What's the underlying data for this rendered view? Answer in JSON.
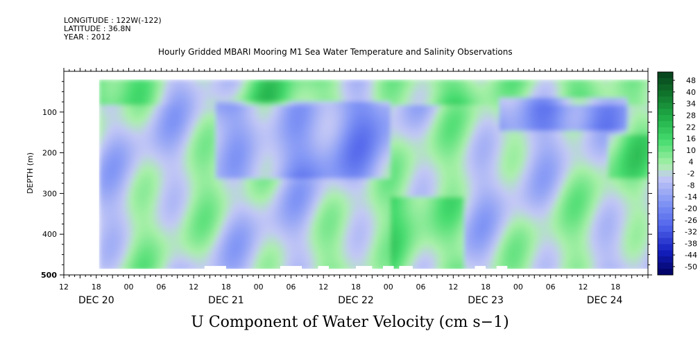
{
  "meta": {
    "longitude": "LONGITUDE : 122W(-122)",
    "latitude": "LATITUDE : 36.8N",
    "year": "YEAR : 2012"
  },
  "chart_data": {
    "type": "heatmap",
    "title": "Hourly Gridded MBARI Mooring M1 Sea Water Temperature and Salinity Observations",
    "xlabel": "",
    "ylabel": "DEPTH (m)",
    "bottom_title": "U Component of Water Velocity (cm s−1)",
    "y_range": [
      0,
      500
    ],
    "y_ticks": [
      100,
      200,
      300,
      400,
      500
    ],
    "x_range_hours": [
      0,
      108
    ],
    "x_hour_labels": [
      "12",
      "18",
      "00",
      "06",
      "12",
      "18",
      "00",
      "06",
      "12",
      "18",
      "00",
      "06",
      "12",
      "18",
      "00",
      "06",
      "12",
      "18"
    ],
    "x_date_labels": [
      {
        "label": "DEC 20",
        "hour": 6
      },
      {
        "label": "DEC 21",
        "hour": 30
      },
      {
        "label": "DEC 22",
        "hour": 54
      },
      {
        "label": "DEC 23",
        "hour": 78
      },
      {
        "label": "DEC 24",
        "hour": 100
      }
    ],
    "data_start_hour": 6.5,
    "data_end_hour": 108,
    "data_depth_range": [
      20,
      485
    ],
    "colorbar": {
      "labels": [
        "48",
        "40",
        "34",
        "28",
        "22",
        "16",
        "10",
        "4",
        "-2",
        "-8",
        "-14",
        "-20",
        "-26",
        "-32",
        "-38",
        "-44",
        "-50"
      ],
      "range": [
        -50,
        48
      ],
      "step": 3
    },
    "colors": {
      "strong_positive": "#0a4a1e",
      "positive": "#33cc55",
      "weak_positive": "#90ee90",
      "near_zero": "#c8c8f0",
      "negative": "#6670e0",
      "strong_negative": "#00008b"
    },
    "grid": false,
    "legend": "colorbar-right"
  }
}
